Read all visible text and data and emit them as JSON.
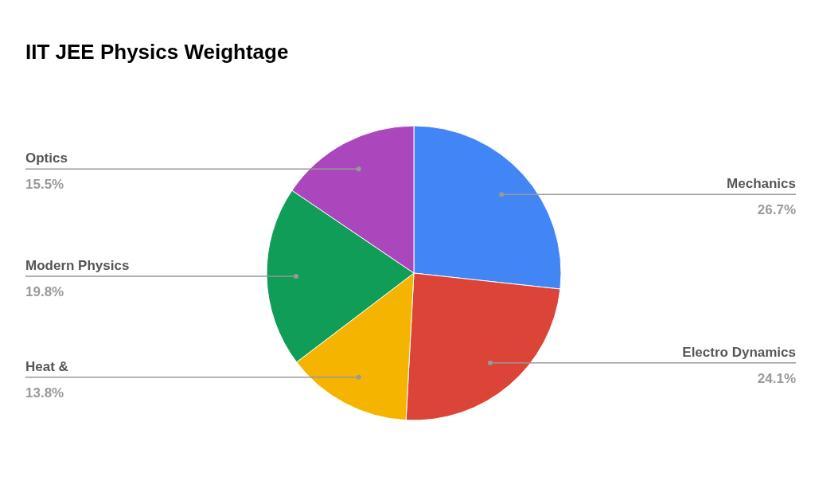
{
  "chart_data": {
    "type": "pie",
    "title": "IIT JEE Physics Weightage",
    "categories": [
      "Mechanics",
      "Electro Dynamics",
      "Heat &",
      "Modern Physics",
      "Optics"
    ],
    "values": [
      26.7,
      24.1,
      13.8,
      19.8,
      15.5
    ],
    "value_labels": [
      "26.7%",
      "24.1%",
      "13.8%",
      "19.8%",
      "15.5%"
    ],
    "colors": [
      "#4285f4",
      "#db4437",
      "#f4b400",
      "#0f9d58",
      "#ab47bc"
    ],
    "legend": false
  }
}
